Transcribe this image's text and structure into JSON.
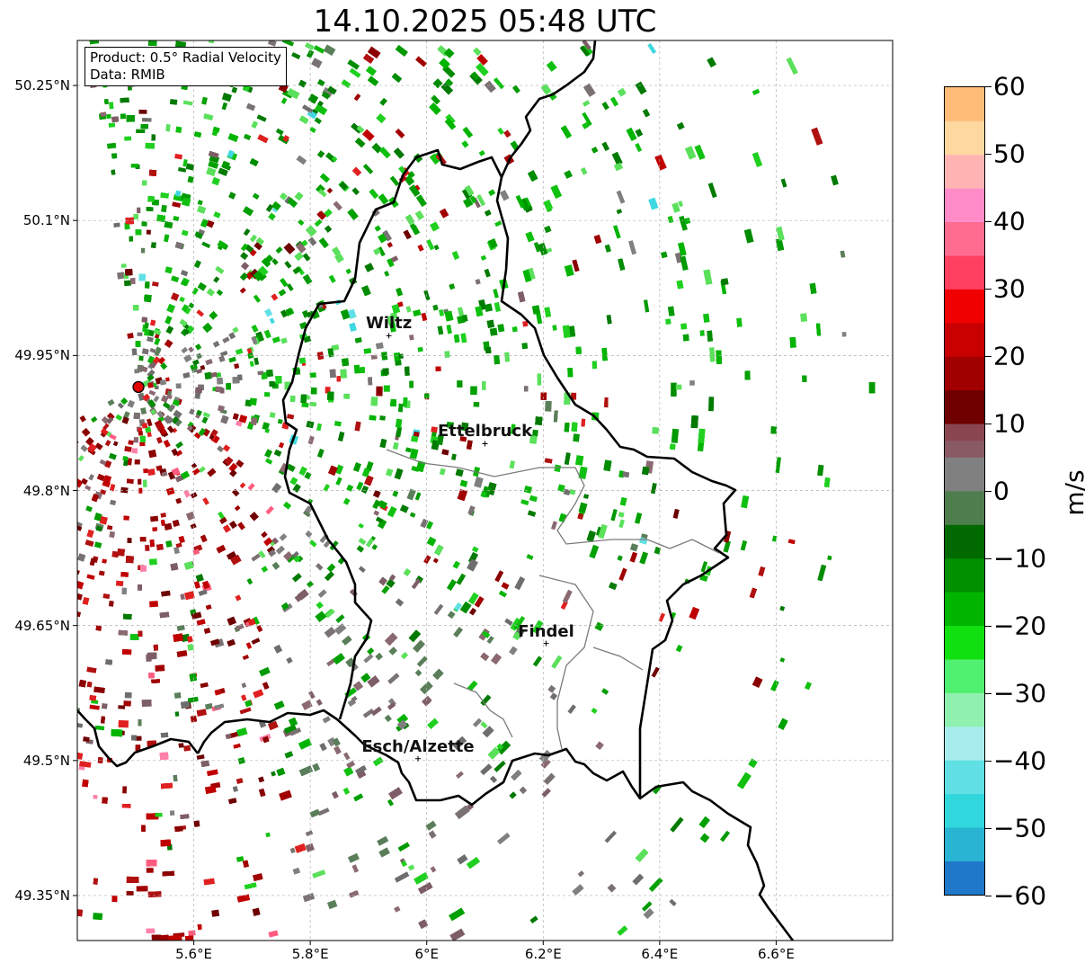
{
  "title": "14.10.2025 05:48 UTC",
  "info": {
    "product": "Product: 0.5° Radial Velocity",
    "data": "Data: RMIB"
  },
  "map": {
    "lon_range": [
      5.4,
      6.8
    ],
    "lat_range": [
      49.3,
      50.3
    ],
    "radar_site": {
      "lon": 5.505,
      "lat": 49.915
    },
    "lat_ticks": [
      {
        "value": 50.25,
        "label": "50.25°N"
      },
      {
        "value": 50.1,
        "label": "50.1°N"
      },
      {
        "value": 49.95,
        "label": "49.95°N"
      },
      {
        "value": 49.8,
        "label": "49.8°N"
      },
      {
        "value": 49.65,
        "label": "49.65°N"
      },
      {
        "value": 49.5,
        "label": "49.5°N"
      },
      {
        "value": 49.35,
        "label": "49.35°N"
      }
    ],
    "lon_ticks": [
      {
        "value": 5.6,
        "label": "5.6°E"
      },
      {
        "value": 5.8,
        "label": "5.8°E"
      },
      {
        "value": 6.0,
        "label": "6°E"
      },
      {
        "value": 6.2,
        "label": "6.2°E"
      },
      {
        "value": 6.4,
        "label": "6.4°E"
      },
      {
        "value": 6.6,
        "label": "6.6°E"
      }
    ],
    "cities": [
      {
        "name": "Wiltz",
        "lon": 5.935,
        "lat": 49.972
      },
      {
        "name": "Ettelbruck",
        "lon": 6.1,
        "lat": 49.852
      },
      {
        "name": "Findel",
        "lon": 6.205,
        "lat": 49.63
      },
      {
        "name": "Esch/Alzette",
        "lon": 5.985,
        "lat": 49.502
      }
    ]
  },
  "colorbar": {
    "unit": "m/s",
    "min": -60,
    "max": 60,
    "ticks": [
      {
        "value": 60,
        "label": "60"
      },
      {
        "value": 50,
        "label": "50"
      },
      {
        "value": 40,
        "label": "40"
      },
      {
        "value": 30,
        "label": "30"
      },
      {
        "value": 20,
        "label": "20"
      },
      {
        "value": 10,
        "label": "10"
      },
      {
        "value": 0,
        "label": "0"
      },
      {
        "value": -10,
        "label": "−10"
      },
      {
        "value": -20,
        "label": "−20"
      },
      {
        "value": -30,
        "label": "−30"
      },
      {
        "value": -40,
        "label": "−40"
      },
      {
        "value": -50,
        "label": "−50"
      },
      {
        "value": -60,
        "label": "−60"
      }
    ],
    "stops": [
      {
        "value": -60,
        "color": "#1f78c8"
      },
      {
        "value": -55,
        "color": "#28b4d2"
      },
      {
        "value": -50,
        "color": "#30d7dc"
      },
      {
        "value": -45,
        "color": "#60e0e4"
      },
      {
        "value": -40,
        "color": "#a8ecee"
      },
      {
        "value": -36,
        "color": "#b8f0ee"
      },
      {
        "value": -35,
        "color": "#90f0b0"
      },
      {
        "value": -30,
        "color": "#50f070"
      },
      {
        "value": -25,
        "color": "#10e010"
      },
      {
        "value": -20,
        "color": "#00b400"
      },
      {
        "value": -15,
        "color": "#009000"
      },
      {
        "value": -10,
        "color": "#006a00"
      },
      {
        "value": -6,
        "color": "#005a00"
      },
      {
        "value": -5,
        "color": "#4e7e4e"
      },
      {
        "value": 0,
        "color": "#808080"
      },
      {
        "value": 5,
        "color": "#8a5a64"
      },
      {
        "value": 8,
        "color": "#8a4650"
      },
      {
        "value": 9,
        "color": "#6e0000"
      },
      {
        "value": 15,
        "color": "#a00000"
      },
      {
        "value": 20,
        "color": "#c80000"
      },
      {
        "value": 25,
        "color": "#f00000"
      },
      {
        "value": 29,
        "color": "#ff1010"
      },
      {
        "value": 30,
        "color": "#ff4060"
      },
      {
        "value": 35,
        "color": "#ff6c90"
      },
      {
        "value": 40,
        "color": "#ff8cc8"
      },
      {
        "value": 45,
        "color": "#ffb4b4"
      },
      {
        "value": 50,
        "color": "#ffd8a0"
      },
      {
        "value": 55,
        "color": "#ffbc78"
      },
      {
        "value": 60,
        "color": "#ff9a50"
      }
    ]
  }
}
